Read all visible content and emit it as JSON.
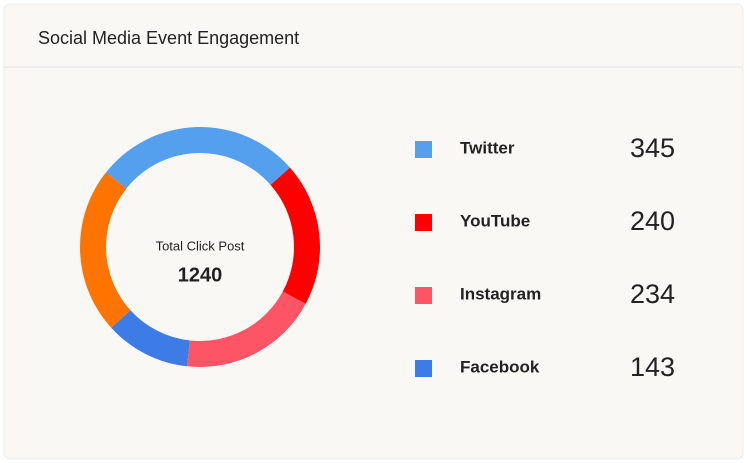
{
  "chart_data": {
    "type": "donut",
    "title": "Social Media Event Engagement",
    "center_label": "Total Click Post",
    "total": 1240,
    "categories": [
      "Twitter",
      "YouTube",
      "Instagram",
      "Facebook",
      null
    ],
    "values": [
      345,
      240,
      234,
      143,
      278
    ],
    "colors": [
      "#55a0ee",
      "#ff0000",
      "#fe5566",
      "#3d7be6",
      "#ff7300"
    ]
  }
}
